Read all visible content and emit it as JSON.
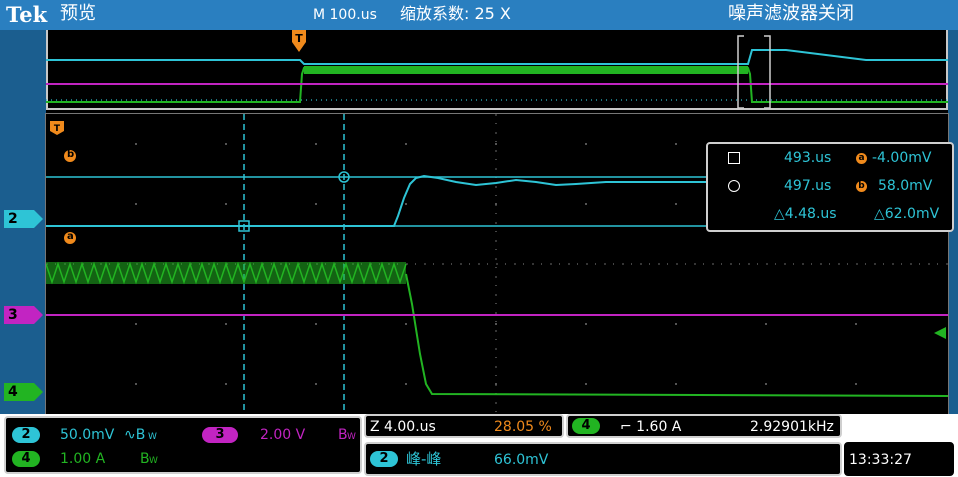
{
  "header": {
    "logo": "Tek",
    "mode": "预览",
    "timebase": "M 100.us",
    "zoom_factor": "缩放系数: 25 X",
    "noise_filter": "噪声滤波器关闭"
  },
  "channel_markers": {
    "ch2": "2",
    "ch3": "3",
    "ch4": "4",
    "trigger_marker": "T",
    "ref_b": "b",
    "ref_a": "a"
  },
  "cursor_readout": {
    "cursor1_time": "493.us",
    "cursor1_value": "-4.00mV",
    "cursor2_time": "497.us",
    "cursor2_value": "58.0mV",
    "delta_time": "△4.48.us",
    "delta_value": "△62.0mV",
    "label_a": "a",
    "label_b": "b"
  },
  "channel_settings": {
    "ch2_badge": "2",
    "ch2_scale": "50.0mV",
    "ch2_coupling": "∿B",
    "ch2_bw": "W",
    "ch3_badge": "3",
    "ch3_scale": "2.00 V",
    "ch3_bw_b": "B",
    "ch3_bw_w": "W",
    "ch4_badge": "4",
    "ch4_scale": "1.00 A",
    "ch4_bw_b": "B",
    "ch4_bw_w": "W"
  },
  "zoom_panel": {
    "zoom_scale": "Z 4.00.us",
    "zoom_position": "28.05 %"
  },
  "trigger_panel": {
    "source_badge": "4",
    "slope_level": "⌐ 1.60 A",
    "frequency": "2.92901kHz"
  },
  "measurement": {
    "badge": "2",
    "name": "峰-峰",
    "value": "66.0mV"
  },
  "clock": {
    "time": "13:33:27"
  },
  "colors": {
    "ch2": "#2ec4d6",
    "ch3": "#c224c2",
    "ch4": "#22b422",
    "trigger": "#f08a1c",
    "header": "#2a7fc0"
  }
}
